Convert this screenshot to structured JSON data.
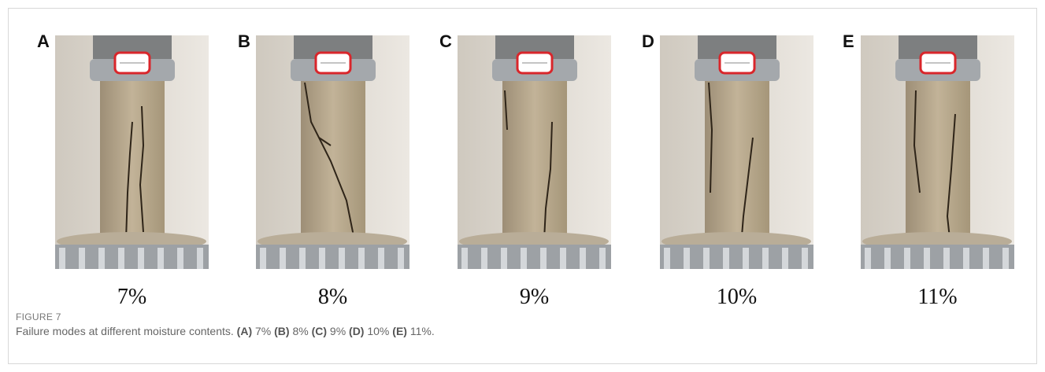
{
  "figure": {
    "panels": [
      {
        "letter": "A",
        "caption": "7%"
      },
      {
        "letter": "B",
        "caption": "8%"
      },
      {
        "letter": "C",
        "caption": "9%"
      },
      {
        "letter": "D",
        "caption": "10%"
      },
      {
        "letter": "E",
        "caption": "11%"
      }
    ],
    "label": "FIGURE 7",
    "caption": {
      "text": "Failure modes at different moisture contents.",
      "items": [
        {
          "tag": "(A)",
          "text": "7%"
        },
        {
          "tag": "(B)",
          "text": "8%"
        },
        {
          "tag": "(C)",
          "text": "9%"
        },
        {
          "tag": "(D)",
          "text": "10%"
        },
        {
          "tag": "(E)",
          "text": "11%."
        }
      ]
    }
  }
}
